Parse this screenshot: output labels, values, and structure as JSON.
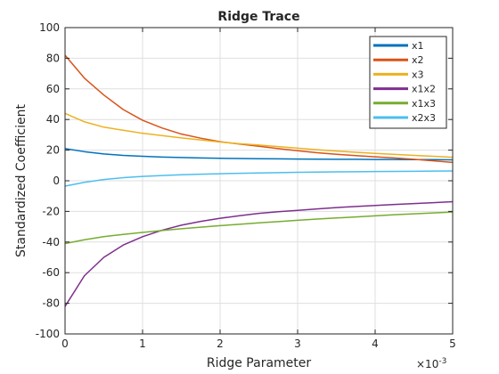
{
  "chart_data": {
    "type": "line",
    "title": "Ridge Trace",
    "xlabel": "Ridge Parameter",
    "ylabel": "Standardized Coefficient",
    "xlim": [
      0,
      0.005
    ],
    "ylim": [
      -100,
      100
    ],
    "xticks": [
      0,
      0.001,
      0.002,
      0.003,
      0.004,
      0.005
    ],
    "xtick_labels": [
      "0",
      "1",
      "2",
      "3",
      "4",
      "5"
    ],
    "x_multiplier_label": "×10",
    "x_multiplier_exponent": "-3",
    "yticks": [
      -100,
      -80,
      -60,
      -40,
      -20,
      0,
      20,
      40,
      60,
      80,
      100
    ],
    "ytick_labels": [
      "-100",
      "-80",
      "-60",
      "-40",
      "-20",
      "0",
      "20",
      "40",
      "60",
      "80",
      "100"
    ],
    "grid": true,
    "legend_position": "top-right",
    "x": [
      0,
      0.00025,
      0.0005,
      0.00075,
      0.001,
      0.00125,
      0.0015,
      0.00175,
      0.002,
      0.00225,
      0.0025,
      0.00275,
      0.003,
      0.00325,
      0.0035,
      0.00375,
      0.004,
      0.00425,
      0.0045,
      0.00475,
      0.005
    ],
    "series": [
      {
        "name": "x1",
        "color": "#0072BD",
        "values": [
          21.0,
          19.0,
          17.5,
          16.6,
          16.0,
          15.5,
          15.2,
          14.9,
          14.7,
          14.5,
          14.4,
          14.3,
          14.2,
          14.1,
          14.0,
          14.0,
          13.9,
          13.9,
          13.8,
          13.8,
          13.7
        ]
      },
      {
        "name": "x2",
        "color": "#D95319",
        "values": [
          82.0,
          67.0,
          56.0,
          46.5,
          39.5,
          34.5,
          30.5,
          27.8,
          25.5,
          24.0,
          22.5,
          21.0,
          19.6,
          18.3,
          17.3,
          16.4,
          15.6,
          14.9,
          14.0,
          13.0,
          12.0
        ]
      },
      {
        "name": "x3",
        "color": "#EDB120",
        "values": [
          44.0,
          38.5,
          35.0,
          33.0,
          31.0,
          29.5,
          28.0,
          26.7,
          25.3,
          24.2,
          23.3,
          22.3,
          21.3,
          20.3,
          19.4,
          18.6,
          17.9,
          17.2,
          16.6,
          16.0,
          15.3
        ]
      },
      {
        "name": "x1x2",
        "color": "#7E2F8E",
        "values": [
          -82.0,
          -62.0,
          -50.0,
          -42.0,
          -36.5,
          -32.3,
          -29.0,
          -26.5,
          -24.5,
          -22.8,
          -21.3,
          -20.2,
          -19.3,
          -18.4,
          -17.5,
          -16.8,
          -16.1,
          -15.5,
          -14.9,
          -14.3,
          -13.7
        ]
      },
      {
        "name": "x1x3",
        "color": "#77AC30",
        "values": [
          -41.0,
          -38.5,
          -36.5,
          -35.0,
          -33.7,
          -32.5,
          -31.3,
          -30.3,
          -29.3,
          -28.4,
          -27.5,
          -26.7,
          -25.8,
          -25.0,
          -24.3,
          -23.6,
          -22.9,
          -22.2,
          -21.6,
          -21.0,
          -20.4
        ]
      },
      {
        "name": "x2x3",
        "color": "#4DBEEE",
        "values": [
          -3.5,
          -1.0,
          0.8,
          2.0,
          2.8,
          3.4,
          3.9,
          4.3,
          4.6,
          4.9,
          5.1,
          5.3,
          5.5,
          5.7,
          5.8,
          5.9,
          6.0,
          6.1,
          6.2,
          6.3,
          6.4
        ]
      }
    ]
  }
}
